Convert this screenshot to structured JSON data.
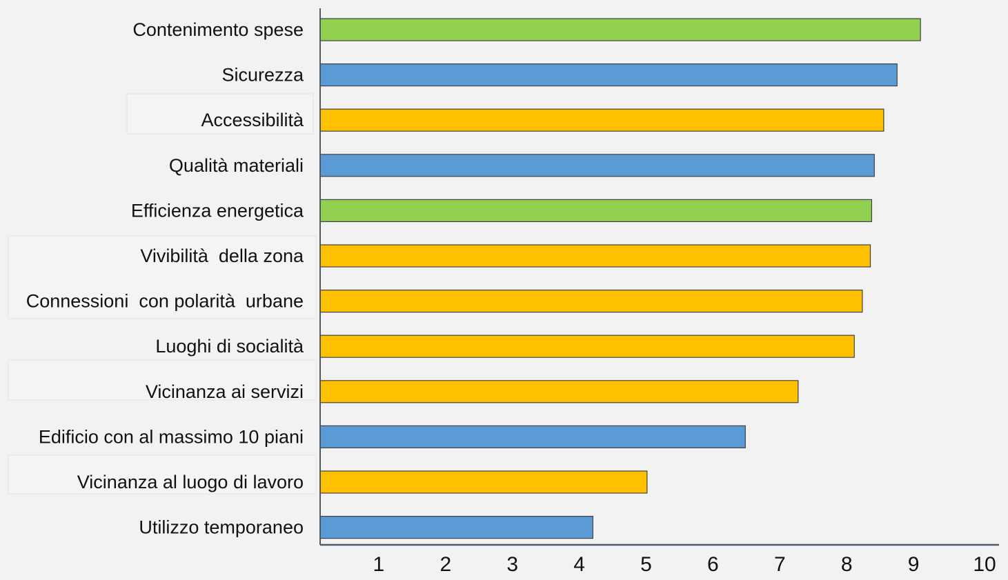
{
  "chart_data": {
    "type": "bar",
    "orientation": "horizontal",
    "categories": [
      "Contenimento spese",
      "Sicurezza",
      "Accessibilità",
      "Qualità materiali",
      "Efficienza energetica",
      "Vivibilità  della zona",
      "Connessioni  con polarità  urbane",
      "Luoghi di socialità",
      "Vicinanza ai servizi",
      "Edificio con al massimo 10 piani",
      "Vicinanza al luogo di lavoro",
      "Utilizzo temporaneo"
    ],
    "values": [
      8.98,
      8.63,
      8.43,
      8.29,
      8.25,
      8.23,
      8.11,
      7.99,
      7.15,
      6.36,
      4.89,
      4.08
    ],
    "bar_colors": [
      "#92d050",
      "#5b9bd5",
      "#ffc000",
      "#5b9bd5",
      "#92d050",
      "#ffc000",
      "#ffc000",
      "#ffc000",
      "#ffc000",
      "#5b9bd5",
      "#ffc000",
      "#5b9bd5"
    ],
    "xlim": [
      0,
      10
    ],
    "x_ticks": [
      "1",
      "2",
      "3",
      "4",
      "5",
      "6",
      "7",
      "8",
      "9",
      "10"
    ],
    "title": "",
    "xlabel": "",
    "ylabel": "",
    "grid": false,
    "legend": "none",
    "axis_color": "#4a5a6a",
    "bar_stroke": "#404040"
  }
}
